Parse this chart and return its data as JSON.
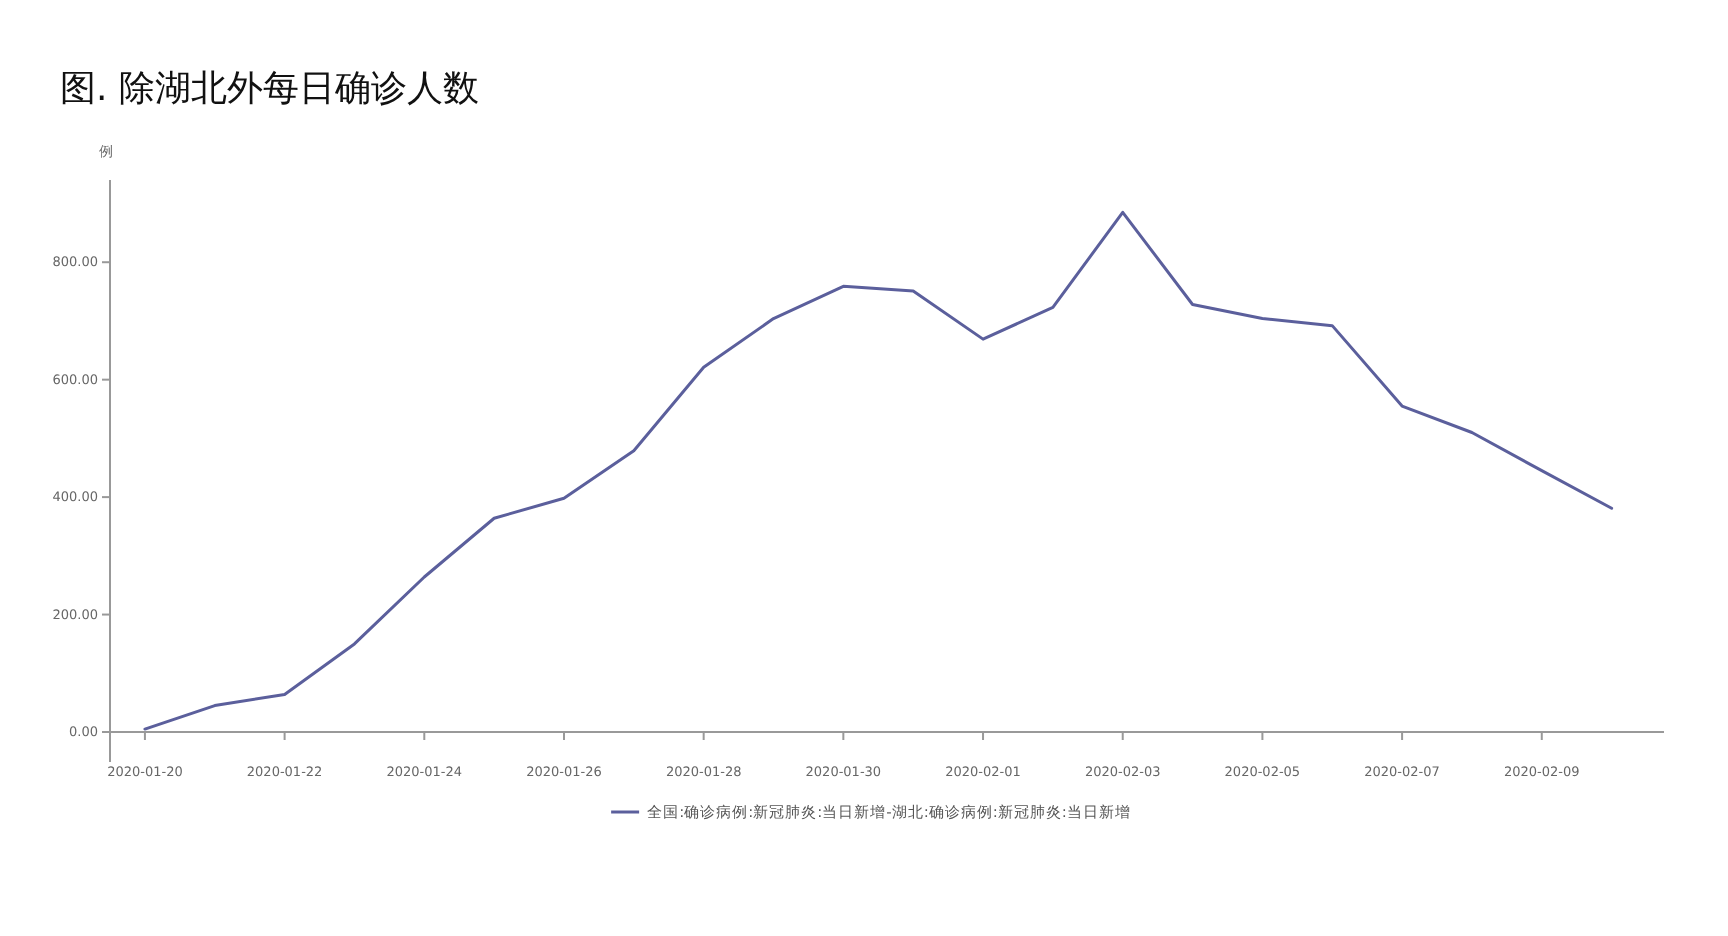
{
  "chart_data": {
    "type": "line",
    "title": "图. 除湖北外每日确诊人数",
    "ylabel": "例",
    "x": [
      "2020-01-20",
      "2020-01-21",
      "2020-01-22",
      "2020-01-23",
      "2020-01-24",
      "2020-01-25",
      "2020-01-26",
      "2020-01-27",
      "2020-01-28",
      "2020-01-29",
      "2020-01-30",
      "2020-01-31",
      "2020-02-01",
      "2020-02-02",
      "2020-02-03",
      "2020-02-04",
      "2020-02-05",
      "2020-02-06",
      "2020-02-07",
      "2020-02-08",
      "2020-02-09",
      "2020-02-10"
    ],
    "series": [
      {
        "name": "全国:确诊病例:新冠肺炎:当日新增-湖北:确诊病例:新冠肺炎:当日新增",
        "color": "#5b5f9c",
        "values": [
          5,
          45,
          64,
          150,
          264,
          364,
          398,
          479,
          621,
          704,
          759,
          751,
          669,
          723,
          885,
          728,
          704,
          692,
          555,
          510,
          445,
          381
        ]
      }
    ],
    "xlim": [
      "2020-01-19T12:00",
      "2020-02-10T18:00"
    ],
    "xticks": [
      "2020-01-20",
      "2020-01-22",
      "2020-01-24",
      "2020-01-26",
      "2020-01-28",
      "2020-01-30",
      "2020-02-01",
      "2020-02-03",
      "2020-02-05",
      "2020-02-07",
      "2020-02-09"
    ],
    "ylim": [
      0,
      940
    ],
    "yticks": [
      {
        "value": 0,
        "label": "0.00"
      },
      {
        "value": 200,
        "label": "200.00"
      },
      {
        "value": 400,
        "label": "400.00"
      },
      {
        "value": 600,
        "label": "600.00"
      },
      {
        "value": 800,
        "label": "800.00"
      }
    ],
    "grid": false,
    "legend": "bottom",
    "marker": "none",
    "line_style": "solid"
  }
}
